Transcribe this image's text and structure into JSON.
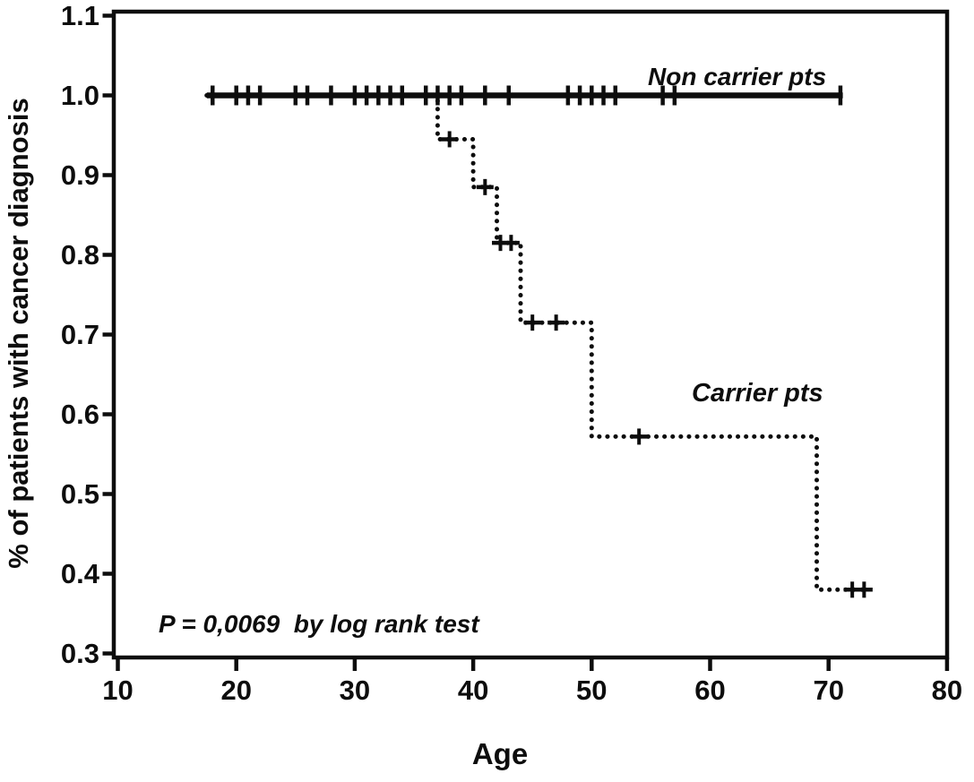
{
  "figure": {
    "background": "#ffffff",
    "ink_color": "#0d0d0d"
  },
  "chart_data": {
    "type": "line",
    "subtype": "kaplan_meier_step_plot",
    "title": "",
    "xlabel": "Age",
    "ylabel": "% of patients with cancer diagnosis",
    "annotation_p_value": "P = 0,0069  by log rank test",
    "x_ticks": [
      "10",
      "20",
      "30",
      "40",
      "50",
      "60",
      "70",
      "80"
    ],
    "y_ticks": [
      "1.1",
      "1.0",
      "0.9",
      "0.8",
      "0.7",
      "0.6",
      "0.5",
      "0.4",
      "0.3"
    ],
    "xlim": [
      10,
      80
    ],
    "ylim": [
      0.3,
      1.1
    ],
    "grid": false,
    "legend_position": "inline-annotations",
    "series": [
      {
        "name": "Carrier pts",
        "line_style": "dotted",
        "step_points": [
          [
            17.5,
            1.0
          ],
          [
            37,
            1.0
          ],
          [
            37,
            0.945
          ],
          [
            40,
            0.945
          ],
          [
            40,
            0.885
          ],
          [
            42,
            0.885
          ],
          [
            42,
            0.815
          ],
          [
            44,
            0.815
          ],
          [
            44,
            0.715
          ],
          [
            50,
            0.715
          ],
          [
            50,
            0.572
          ],
          [
            69,
            0.572
          ],
          [
            69,
            0.38
          ],
          [
            73.3,
            0.38
          ]
        ],
        "censor_marks": [
          [
            38,
            0.945
          ],
          [
            41,
            0.885
          ],
          [
            42.3,
            0.815
          ],
          [
            43.2,
            0.815
          ],
          [
            45,
            0.715
          ],
          [
            47,
            0.715
          ],
          [
            54,
            0.572
          ],
          [
            72,
            0.38
          ],
          [
            73,
            0.38
          ]
        ]
      },
      {
        "name": "Non carrier pts",
        "line_style": "solid",
        "step_points": [
          [
            17.5,
            1.0
          ],
          [
            71.2,
            1.0
          ]
        ],
        "censor_marks": [
          [
            18,
            1.0
          ],
          [
            20,
            1.0
          ],
          [
            21,
            1.0
          ],
          [
            22,
            1.0
          ],
          [
            25,
            1.0
          ],
          [
            26,
            1.0
          ],
          [
            28,
            1.0
          ],
          [
            30,
            1.0
          ],
          [
            31,
            1.0
          ],
          [
            32,
            1.0
          ],
          [
            33,
            1.0
          ],
          [
            34,
            1.0
          ],
          [
            36,
            1.0
          ],
          [
            37,
            1.0
          ],
          [
            38,
            1.0
          ],
          [
            39,
            1.0
          ],
          [
            41,
            1.0
          ],
          [
            43,
            1.0
          ],
          [
            48,
            1.0
          ],
          [
            49,
            1.0
          ],
          [
            50,
            1.0
          ],
          [
            51,
            1.0
          ],
          [
            52,
            1.0
          ],
          [
            56,
            1.0
          ],
          [
            57,
            1.0
          ],
          [
            71,
            1.0
          ]
        ]
      }
    ]
  }
}
